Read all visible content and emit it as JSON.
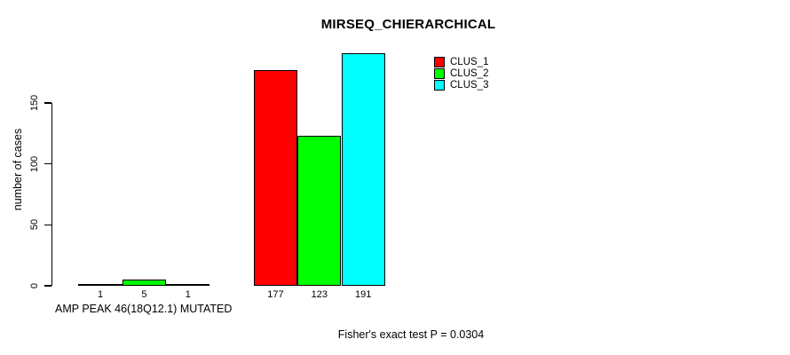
{
  "chart_data": {
    "type": "bar",
    "title": "MIRSEQ_CHIERARCHICAL",
    "xlabel": "AMP PEAK 46(18Q12.1) MUTATED",
    "ylabel": "number of cases",
    "yticks": [
      0,
      50,
      100,
      150
    ],
    "ylim": [
      0,
      195
    ],
    "grid": false,
    "legend_position": "top-right",
    "group_count": 2,
    "series": [
      {
        "name": "CLUS_1",
        "color": "#ff0000",
        "values": [
          1,
          177
        ]
      },
      {
        "name": "CLUS_2",
        "color": "#00ff00",
        "values": [
          5,
          123
        ]
      },
      {
        "name": "CLUS_3",
        "color": "#00ffff",
        "values": [
          1,
          191
        ]
      }
    ],
    "bar_value_labels": [
      [
        "1",
        "5",
        "1"
      ],
      [
        "177",
        "123",
        "191"
      ]
    ],
    "annotation": "Fisher's exact test P = 0.0304"
  }
}
